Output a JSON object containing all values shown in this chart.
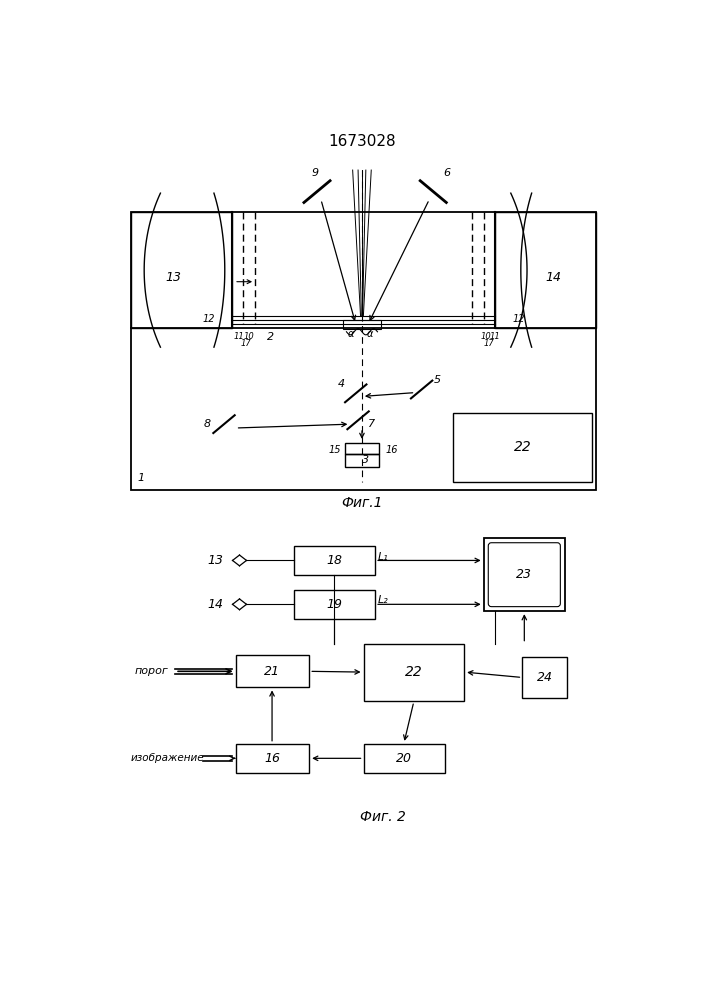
{
  "title": "1673028",
  "fig1_label": "Фиг.1",
  "fig2_label": "Фиг. 2",
  "bg_color": "#ffffff",
  "line_color": "#000000"
}
